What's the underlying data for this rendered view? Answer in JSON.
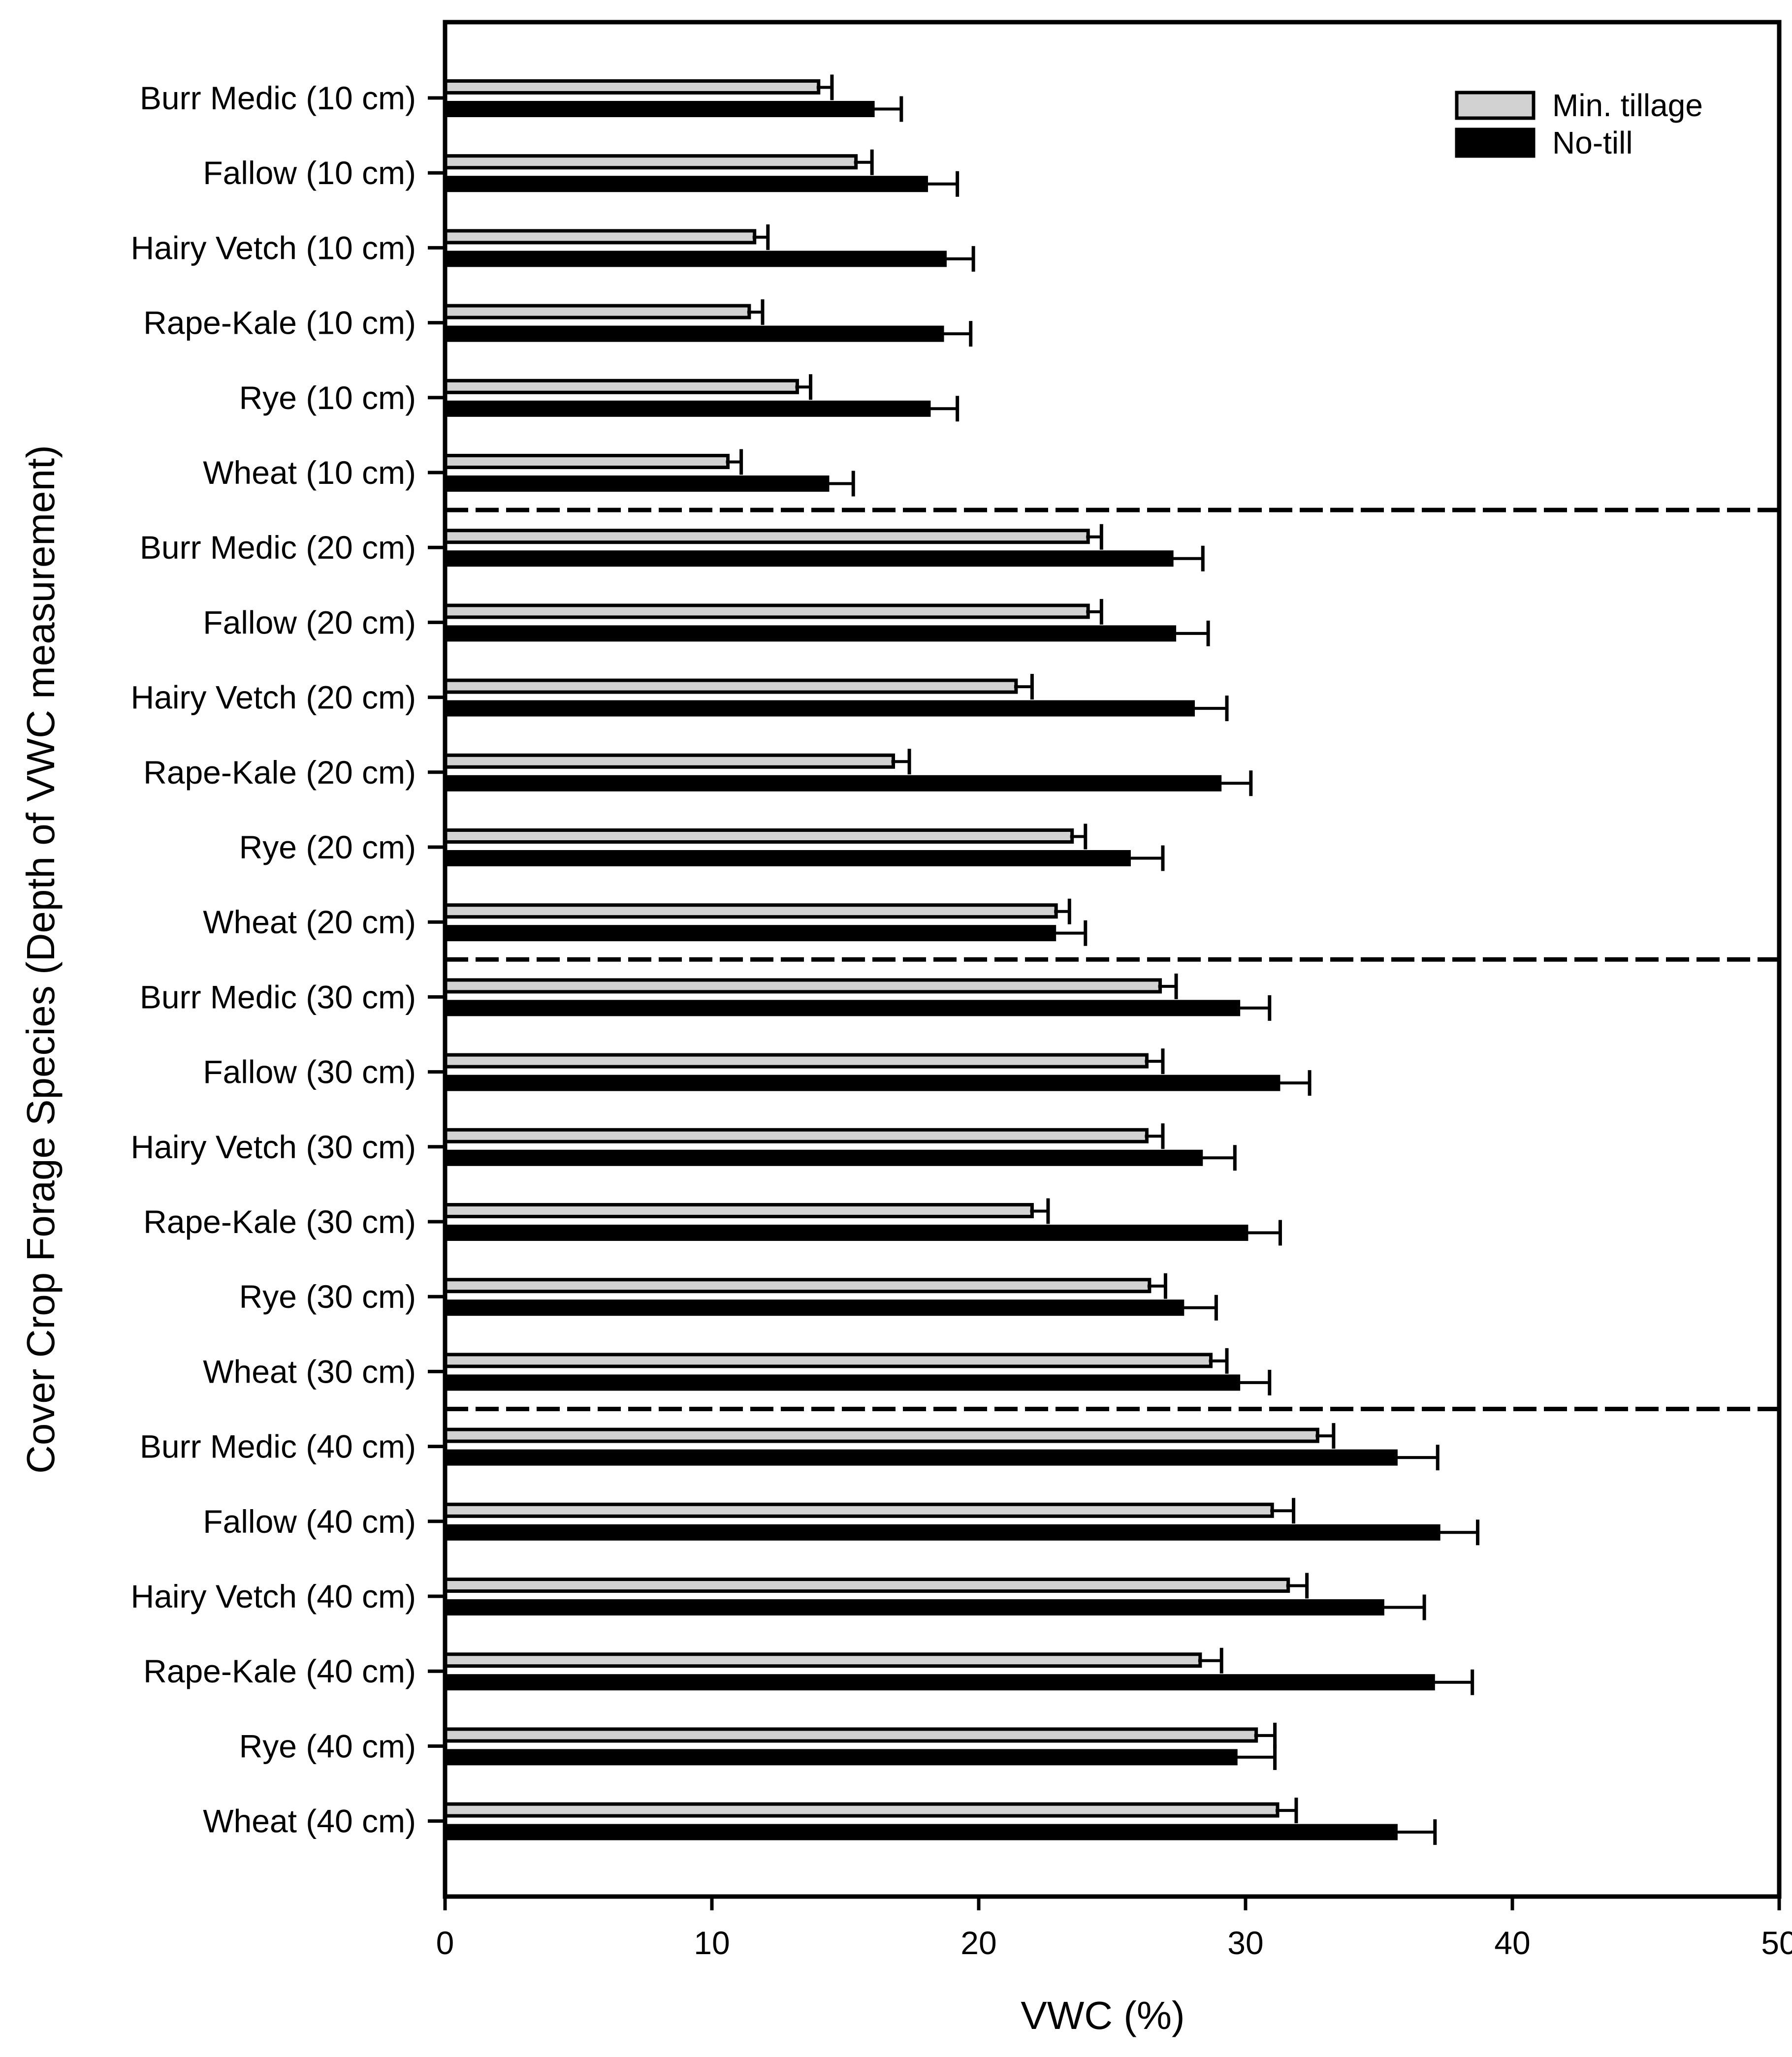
{
  "figure": {
    "background": "#ffffff",
    "foreground": "#000000"
  },
  "chart_data": {
    "type": "bar",
    "orientation": "horizontal",
    "title": "",
    "xlabel": "VWC (%)",
    "ylabel": "Cover Crop Forage Species (Depth of VWC measurement)",
    "xlim": [
      0,
      50
    ],
    "xticks": [
      "0",
      "10",
      "20",
      "30",
      "40",
      "50"
    ],
    "grid": false,
    "legend_position": "top-right-inside",
    "depth_groups": [
      "10 cm",
      "20 cm",
      "30 cm",
      "40 cm"
    ],
    "separators_after_indices": [
      5,
      11,
      17
    ],
    "categories": [
      "Burr Medic (10 cm)",
      "Fallow (10 cm)",
      "Hairy Vetch (10 cm)",
      "Rape-Kale (10 cm)",
      "Rye (10 cm)",
      "Wheat (10 cm)",
      "Burr Medic (20 cm)",
      "Fallow (20 cm)",
      "Hairy Vetch (20 cm)",
      "Rape-Kale (20 cm)",
      "Rye (20 cm)",
      "Wheat (20 cm)",
      "Burr Medic (30 cm)",
      "Fallow (30 cm)",
      "Hairy Vetch (30 cm)",
      "Rape-Kale (30 cm)",
      "Rye (30 cm)",
      "Wheat (30 cm)",
      "Burr Medic (40 cm)",
      "Fallow (40 cm)",
      "Hairy Vetch (40 cm)",
      "Rape-Kale (40 cm)",
      "Rye (40 cm)",
      "Wheat (40 cm)"
    ],
    "series": [
      {
        "name": "Min. tillage",
        "color": "#d2d2d2",
        "border": "#000000",
        "values": [
          14.0,
          15.4,
          11.6,
          11.4,
          13.2,
          10.6,
          24.1,
          24.1,
          21.4,
          16.8,
          23.5,
          22.9,
          26.8,
          26.3,
          26.3,
          22.0,
          26.4,
          28.7,
          32.7,
          31.0,
          31.6,
          28.3,
          30.4,
          31.2
        ],
        "errors": [
          0.5,
          0.6,
          0.5,
          0.5,
          0.5,
          0.5,
          0.5,
          0.5,
          0.6,
          0.6,
          0.5,
          0.5,
          0.6,
          0.6,
          0.6,
          0.6,
          0.6,
          0.6,
          0.6,
          0.8,
          0.7,
          0.8,
          0.7,
          0.7
        ]
      },
      {
        "name": "No-till",
        "color": "#000000",
        "border": "#000000",
        "values": [
          16.1,
          18.1,
          18.8,
          18.7,
          18.2,
          14.4,
          27.3,
          27.4,
          28.1,
          29.1,
          25.7,
          22.9,
          29.8,
          31.3,
          28.4,
          30.1,
          27.7,
          29.8,
          35.7,
          37.3,
          35.2,
          37.1,
          29.7,
          35.7
        ],
        "errors": [
          1.0,
          1.1,
          1.0,
          1.0,
          1.0,
          0.9,
          1.1,
          1.2,
          1.2,
          1.1,
          1.2,
          1.1,
          1.1,
          1.1,
          1.2,
          1.2,
          1.2,
          1.1,
          1.5,
          1.4,
          1.5,
          1.4,
          1.4,
          1.4
        ]
      }
    ]
  }
}
